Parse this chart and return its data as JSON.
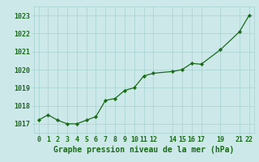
{
  "x": [
    0,
    1,
    2,
    3,
    4,
    5,
    6,
    7,
    8,
    9,
    10,
    11,
    12,
    14,
    15,
    16,
    17,
    19,
    21,
    22
  ],
  "y": [
    1017.2,
    1017.5,
    1017.2,
    1017.0,
    1017.0,
    1017.2,
    1017.4,
    1018.3,
    1018.4,
    1018.85,
    1019.0,
    1019.65,
    1019.8,
    1019.9,
    1020.0,
    1020.35,
    1020.3,
    1021.1,
    1022.1,
    1023.0
  ],
  "xticks": [
    0,
    1,
    2,
    3,
    4,
    5,
    6,
    7,
    8,
    9,
    10,
    11,
    12,
    14,
    15,
    16,
    17,
    19,
    21,
    22
  ],
  "yticks": [
    1017,
    1018,
    1019,
    1020,
    1021,
    1022,
    1023
  ],
  "ylim": [
    1016.5,
    1023.5
  ],
  "xlim": [
    -0.5,
    22.5
  ],
  "line_color": "#1a6b1a",
  "marker_color": "#1a6b1a",
  "bg_color": "#cce8e8",
  "grid_color": "#aed4d4",
  "xlabel": "Graphe pression niveau de la mer (hPa)",
  "xlabel_color": "#1a6b1a",
  "tick_color": "#1a6b1a",
  "xlabel_fontsize": 7,
  "tick_fontsize": 6
}
